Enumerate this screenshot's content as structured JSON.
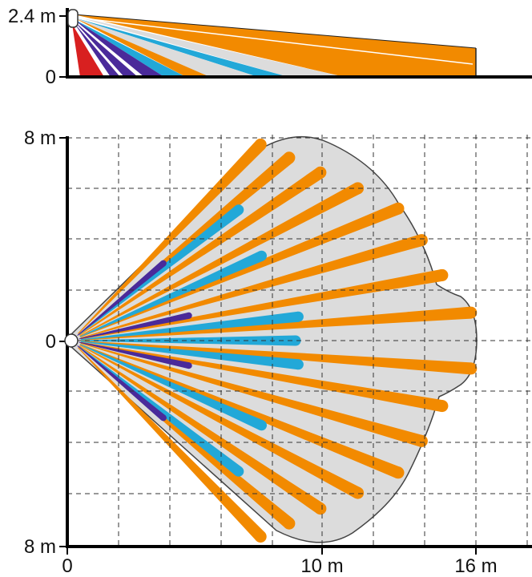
{
  "side_view": {
    "y_top_label": "2.4 m",
    "y_bottom_label": "0"
  },
  "top_view": {
    "y_top_label": "8 m",
    "y_mid_label": "0",
    "y_bottom_label": "8 m",
    "x_labels": [
      "0",
      "10 m",
      "16 m"
    ]
  },
  "colors": {
    "far_zone": "#F28A00",
    "mid_zone": "#22A8D8",
    "near_zone": "#4A2A9A",
    "creep_zone": "#D82020",
    "coverage_fill": "#DCDCDC",
    "grid": "#333333"
  }
}
